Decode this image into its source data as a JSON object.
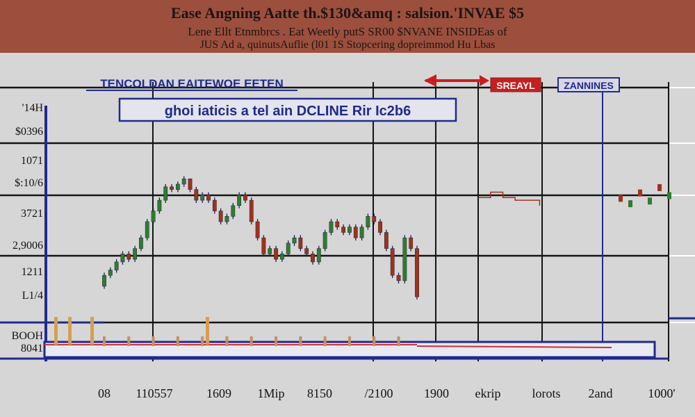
{
  "banner": {
    "title": "Ease Angning Aatte th.$130&amq : salsion.'INVAE $5",
    "subtitle": "Lene Ellt Etnmbrcs . Eat Weetly putS SR00 $NVANE INSIDEas of",
    "subtitle2": "JUS  Ad a, quinutsAuflie (l01 1S Stopcering dopreimmod Hu Lbas"
  },
  "colors": {
    "banner": "#9c4f3c",
    "background": "#d6d6d6",
    "grid": "#141414",
    "axis": "#1f2a8f",
    "up": "#2e7d32",
    "down": "#a0321f",
    "wick": "#1a1a6e",
    "baseline_red": "#d03030",
    "baseline_blue": "#1f2a8f"
  },
  "chart_data": {
    "type": "candlestick",
    "title": "TENCOLDAN EAITEWOE EETEN",
    "annotation": "ghoi iaticis a tel ain DCLINE Rir Ic2b6",
    "legend": [
      {
        "label": "SREAYL",
        "color": "#c81e1e"
      },
      {
        "label": "ZANNINES",
        "color": "#1f2a8f"
      }
    ],
    "y_tick_labels": [
      "'14H",
      "$0396",
      "1071",
      "$:10/6",
      "3721",
      "2,9006",
      "1211",
      "L1/4",
      "BOOH",
      "8041"
    ],
    "x_tick_labels": [
      "08",
      "110557",
      "1609",
      "1Mip",
      "8150",
      "/2100",
      "1900",
      "ekrip",
      "lorots",
      "2and",
      "1000'"
    ],
    "ylim": [
      0,
      100
    ],
    "x": [
      1,
      2,
      3,
      4,
      5,
      6,
      7,
      8,
      9,
      10,
      11,
      12,
      13,
      14,
      15,
      16,
      17,
      18,
      19,
      20,
      21,
      22,
      23,
      24,
      25,
      26,
      27,
      28,
      29,
      30,
      31,
      32,
      33,
      34,
      35,
      36,
      37,
      38,
      39,
      40,
      41,
      42,
      43,
      44,
      45,
      46,
      47,
      48,
      49,
      50,
      51,
      52
    ],
    "open": [
      26,
      30,
      32,
      35,
      38,
      36,
      40,
      44,
      50,
      54,
      58,
      63,
      62,
      64,
      66,
      62,
      58,
      60,
      58,
      54,
      50,
      52,
      56,
      60,
      58,
      50,
      44,
      38,
      40,
      36,
      38,
      42,
      44,
      40,
      38,
      35,
      40,
      46,
      50,
      48,
      46,
      48,
      44,
      48,
      52,
      50,
      46,
      40,
      30,
      28,
      44,
      40
    ],
    "close": [
      30,
      32,
      35,
      38,
      36,
      40,
      44,
      50,
      54,
      58,
      63,
      62,
      64,
      66,
      62,
      58,
      60,
      58,
      54,
      50,
      52,
      56,
      60,
      58,
      50,
      44,
      38,
      40,
      36,
      38,
      42,
      44,
      40,
      38,
      35,
      40,
      46,
      50,
      48,
      46,
      48,
      44,
      48,
      52,
      50,
      46,
      40,
      30,
      28,
      44,
      40,
      22
    ],
    "high": [
      31,
      33,
      36,
      39,
      39,
      41,
      45,
      51,
      55,
      59,
      64,
      64,
      65,
      67,
      66,
      63,
      61,
      61,
      59,
      55,
      53,
      57,
      61,
      61,
      59,
      51,
      45,
      41,
      41,
      39,
      43,
      45,
      45,
      41,
      39,
      41,
      47,
      51,
      51,
      49,
      49,
      49,
      49,
      53,
      53,
      51,
      47,
      41,
      31,
      45,
      45,
      41
    ],
    "low": [
      25,
      29,
      31,
      34,
      35,
      35,
      39,
      43,
      49,
      53,
      57,
      61,
      61,
      63,
      61,
      57,
      57,
      57,
      53,
      49,
      49,
      51,
      55,
      57,
      49,
      43,
      37,
      37,
      35,
      35,
      37,
      41,
      39,
      37,
      34,
      34,
      39,
      45,
      47,
      45,
      45,
      43,
      43,
      47,
      49,
      45,
      39,
      29,
      27,
      27,
      39,
      21
    ],
    "step_line": [
      [
        62,
        19
      ],
      [
        64,
        19
      ],
      [
        64,
        21
      ],
      [
        66,
        21
      ],
      [
        66,
        19
      ],
      [
        68,
        19
      ],
      [
        68,
        18
      ],
      [
        72,
        18
      ],
      [
        72,
        16
      ]
    ],
    "right_bars": [
      20,
      18,
      22,
      19,
      24,
      21
    ]
  }
}
